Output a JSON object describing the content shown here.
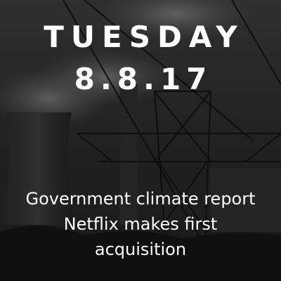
{
  "card": {
    "day": "TUESDAY",
    "date": "8.8.17",
    "headlines": [
      "Government climate report",
      "Netflix makes first acquisition"
    ]
  },
  "background": {
    "scene": "power-plant-with-cooling-tower-and-transmission-towers",
    "sky_color": "#3a3a3a",
    "silhouette_color": "#141414"
  }
}
